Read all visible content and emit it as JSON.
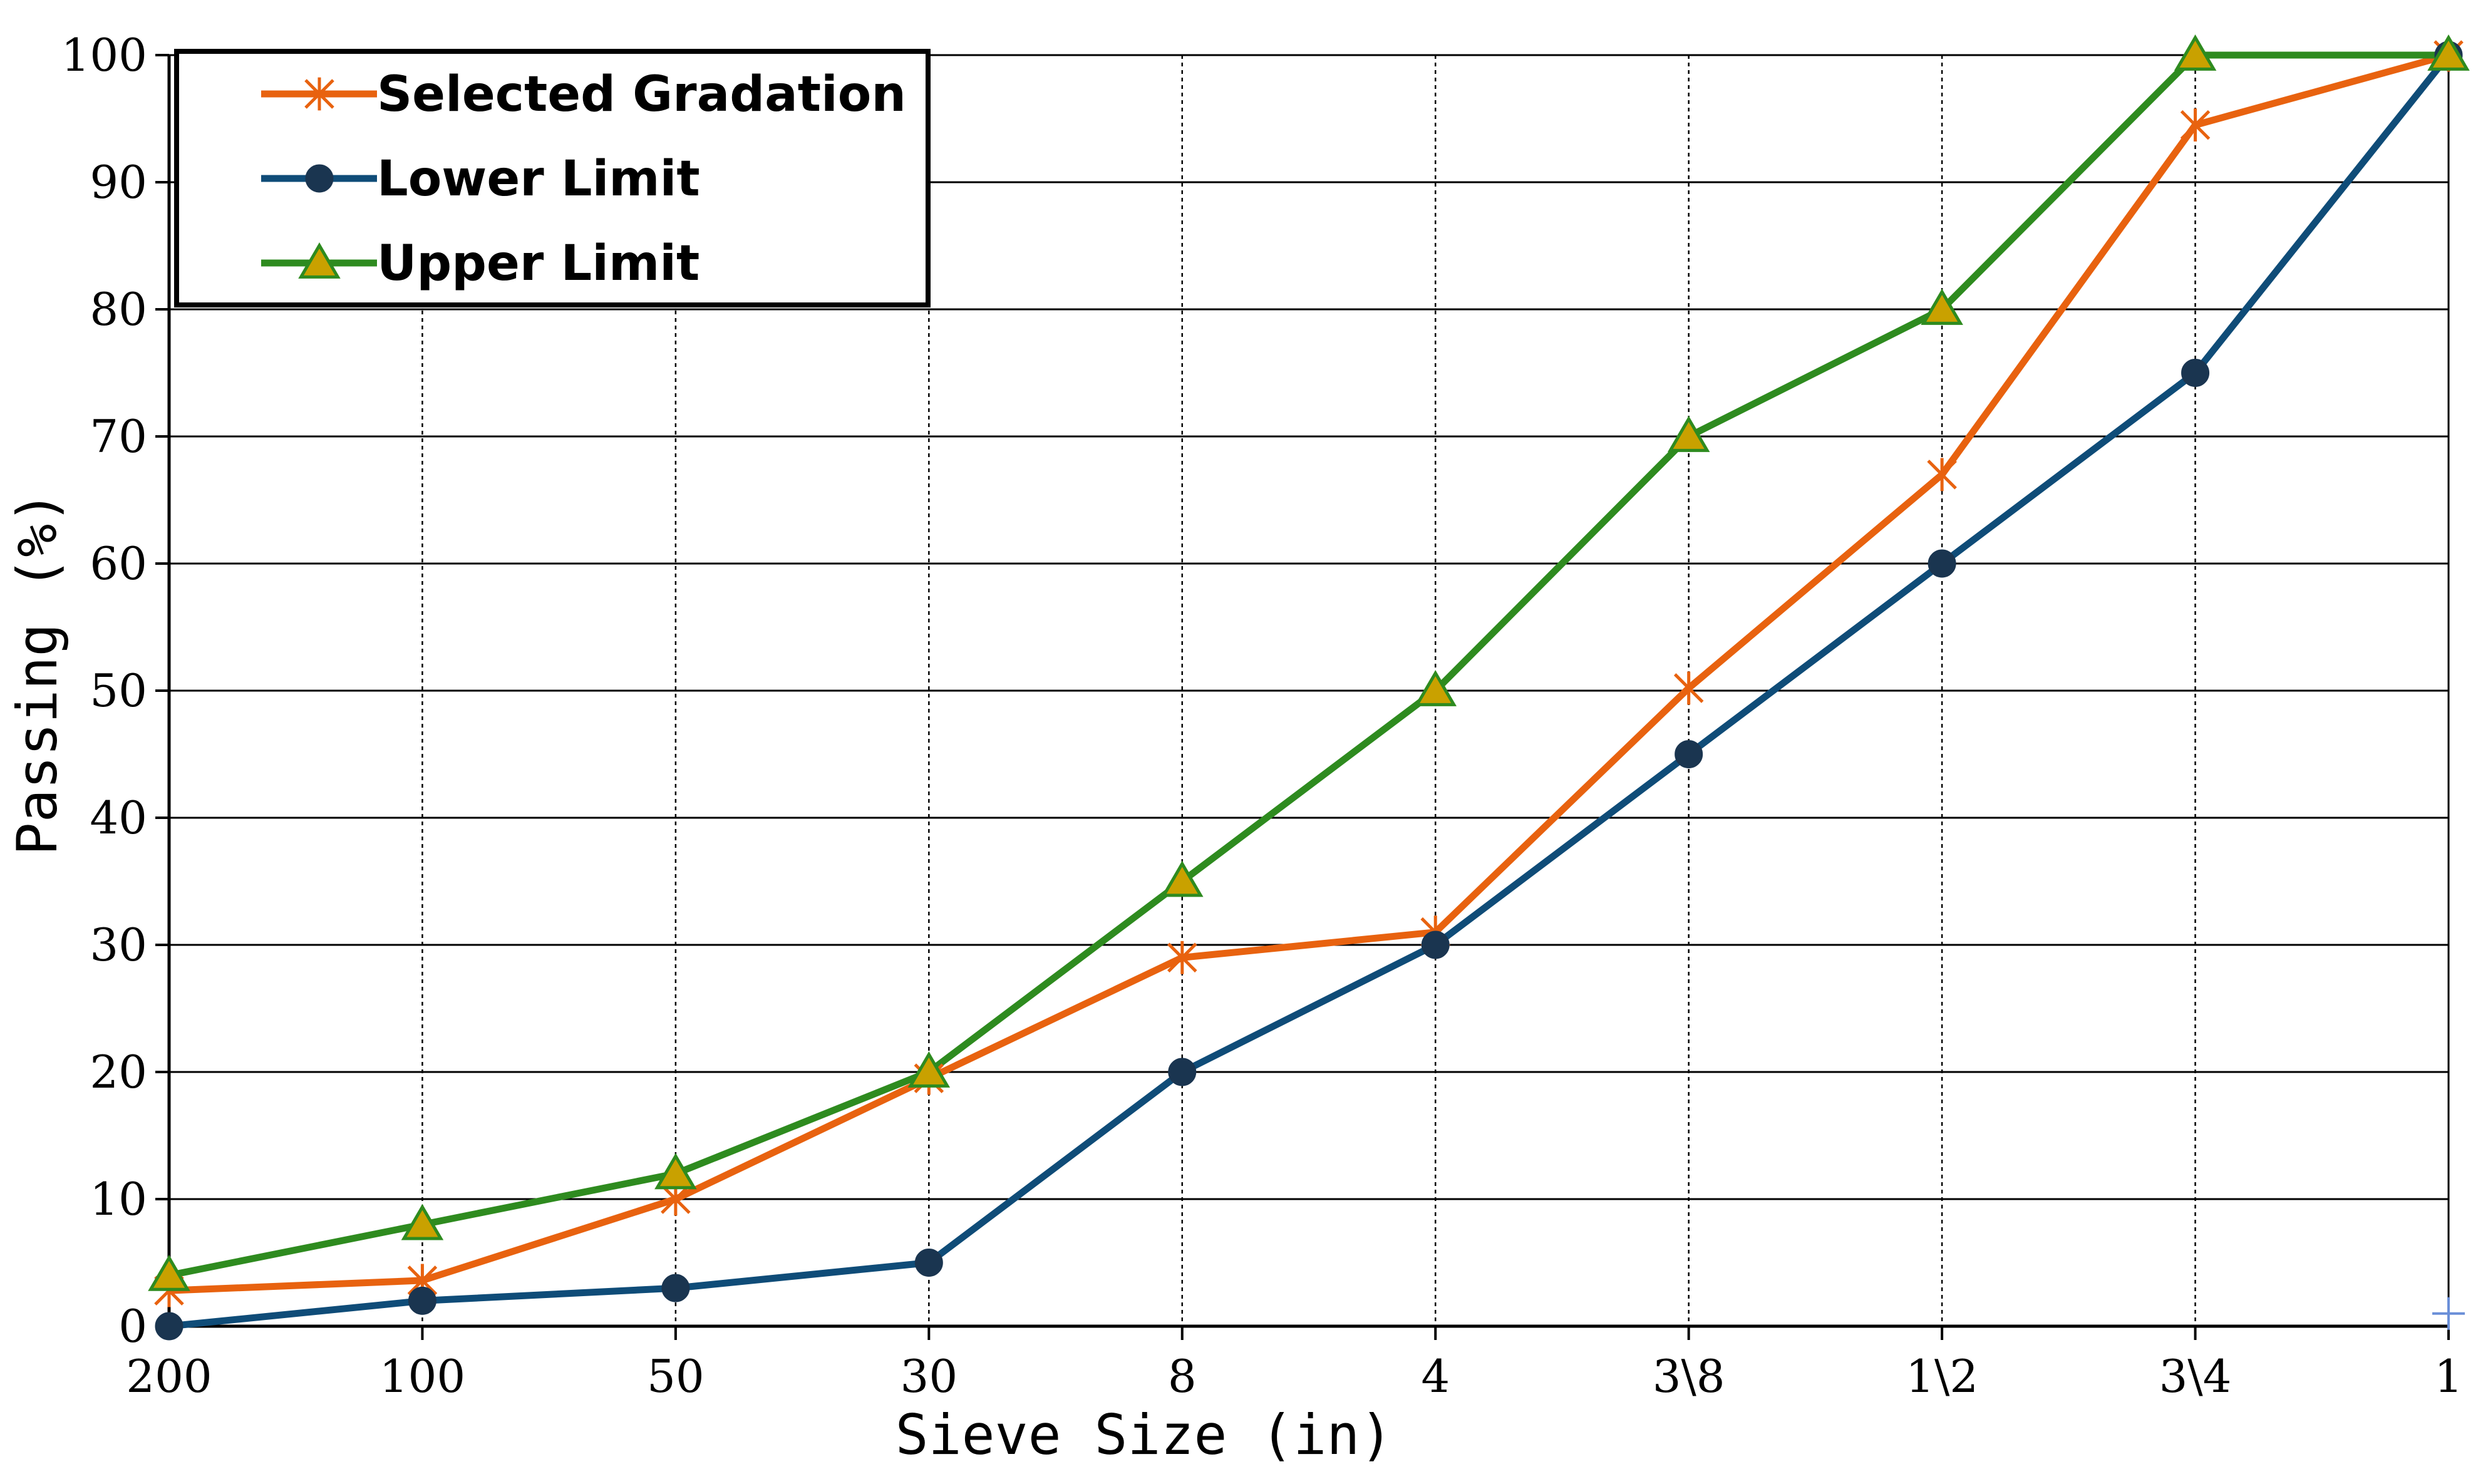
{
  "chart_data": {
    "type": "line",
    "title": "",
    "xlabel": "Sieve Size (in)",
    "ylabel": "Passing (%)",
    "categories": [
      "200",
      "100",
      "50",
      "30",
      "8",
      "4",
      "3\\8",
      "1\\2",
      "3\\4",
      "1"
    ],
    "ylim": [
      0,
      100
    ],
    "yticks": [
      0,
      10,
      20,
      30,
      40,
      50,
      60,
      70,
      80,
      90,
      100
    ],
    "grid": true,
    "legend_position": "top-left",
    "series": [
      {
        "name": "Selected Gradation",
        "color": "#E8620F",
        "marker": "asterisk",
        "values": [
          2.8,
          3.6,
          10,
          19.5,
          29,
          31,
          50.2,
          67,
          94.5,
          100
        ]
      },
      {
        "name": "Lower Limit",
        "color": "#0F4C78",
        "marker": "circle",
        "marker_color": "#1A3550",
        "values": [
          0,
          2,
          3,
          5,
          20,
          30,
          45,
          60,
          75,
          100
        ]
      },
      {
        "name": "Upper Limit",
        "color": "#2E8B1F",
        "marker": "triangle",
        "marker_color": "#C9A100",
        "values": [
          4,
          8,
          12,
          20,
          35,
          50,
          70,
          80,
          100,
          100
        ]
      }
    ],
    "stray_marker": {
      "symbol": "plus",
      "color": "#6A8FD8",
      "x_category": "1",
      "y": 1
    }
  }
}
